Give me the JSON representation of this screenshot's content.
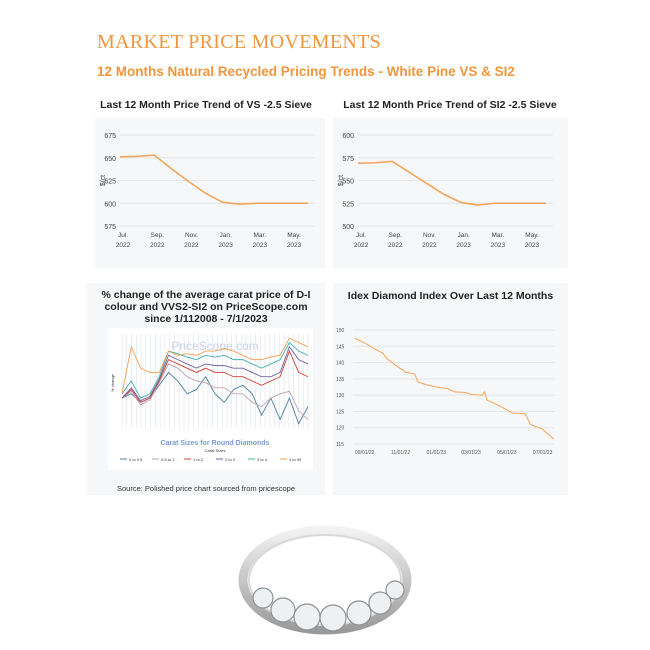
{
  "header": {
    "title": "MARKET PRICE MOVEMENTS",
    "subtitle": "12 Months Natural Recycled Pricing Trends - White Pine VS & SI2"
  },
  "colors": {
    "accent": "#f0963c",
    "line": "#f4a55a"
  },
  "chart_data": [
    {
      "type": "line",
      "title": "Last 12 Month Price Trend of VS -2.5 Sieve",
      "ylabel": "$/ct",
      "ylim": [
        575,
        675
      ],
      "yticks": [
        575,
        600,
        625,
        650,
        675
      ],
      "xticks": [
        [
          "Jul.",
          "2022"
        ],
        [
          "Sep.",
          "2022"
        ],
        [
          "Nov.",
          "2022"
        ],
        [
          "Jan.",
          "2023"
        ],
        [
          "Mar.",
          "2023"
        ],
        [
          "May.",
          "2023"
        ]
      ],
      "x": [
        "2022-07",
        "2022-08",
        "2022-09",
        "2022-10",
        "2022-11",
        "2022-12",
        "2023-01",
        "2023-02",
        "2023-03",
        "2023-04",
        "2023-05",
        "2023-06"
      ],
      "values": [
        651,
        651.5,
        653,
        638,
        624,
        611,
        601,
        599,
        600,
        600,
        600,
        600
      ],
      "grid": true
    },
    {
      "type": "line",
      "title": "Last 12 Month Price Trend of SI2 -2.5 Sieve",
      "ylabel": "$/ct",
      "ylim": [
        500,
        600
      ],
      "yticks": [
        500,
        525,
        550,
        575,
        600
      ],
      "xticks": [
        [
          "Jul.",
          "2022"
        ],
        [
          "Sep.",
          "2022"
        ],
        [
          "Nov.",
          "2022"
        ],
        [
          "Jan.",
          "2023"
        ],
        [
          "Mar.",
          "2023"
        ],
        [
          "May.",
          "2023"
        ]
      ],
      "x": [
        "2022-07",
        "2022-08",
        "2022-09",
        "2022-10",
        "2022-11",
        "2022-12",
        "2023-01",
        "2023-02",
        "2023-03",
        "2023-04",
        "2023-05",
        "2023-06"
      ],
      "values": [
        569,
        569.5,
        571,
        559,
        547,
        535,
        526,
        523,
        525,
        525,
        525,
        525
      ],
      "grid": true
    },
    {
      "type": "line",
      "title": "% change of the average carat price of D-I colour and VVS2-SI2 on PriceScope.com since 1/112008 - 7/1/2023",
      "watermark": "PriceScope.com",
      "ylabel": "% change",
      "xlabel": "Carat Sizes for Round Diamonds",
      "legend_title": "Carat Sizes",
      "legend": "bottom",
      "series": [
        {
          "name": "0 to 0.5",
          "color": "#4a7fa0",
          "values": [
            0,
            5,
            -5,
            0,
            15,
            30,
            20,
            5,
            10,
            25,
            5,
            -5,
            10,
            15,
            5,
            -20,
            0,
            -25,
            0,
            -30,
            -10
          ]
        },
        {
          "name": "0.5 to 1",
          "color": "#c0a0b0",
          "values": [
            0,
            8,
            -8,
            -2,
            18,
            40,
            35,
            25,
            20,
            18,
            12,
            12,
            5,
            5,
            -5,
            -10,
            0,
            5,
            8,
            -15,
            -25
          ]
        },
        {
          "name": "1 to 2",
          "color": "#d04030",
          "values": [
            0,
            10,
            -5,
            0,
            20,
            45,
            40,
            35,
            30,
            35,
            30,
            30,
            25,
            25,
            20,
            15,
            20,
            25,
            55,
            30,
            25
          ]
        },
        {
          "name": "2 to 3",
          "color": "#7060a0",
          "values": [
            0,
            12,
            -3,
            2,
            22,
            50,
            45,
            40,
            35,
            40,
            38,
            38,
            35,
            35,
            30,
            25,
            25,
            30,
            60,
            45,
            40
          ]
        },
        {
          "name": "3 to 4",
          "color": "#40b0b0",
          "values": [
            5,
            20,
            0,
            5,
            25,
            55,
            52,
            48,
            45,
            50,
            48,
            50,
            45,
            45,
            40,
            35,
            40,
            45,
            65,
            55,
            50
          ]
        },
        {
          "name": "4 to 99",
          "color": "#f0a050",
          "values": [
            5,
            60,
            35,
            30,
            30,
            55,
            50,
            52,
            50,
            55,
            55,
            58,
            55,
            50,
            45,
            45,
            48,
            50,
            70,
            65,
            60
          ]
        }
      ],
      "source": "Source: Polished price chart sourced from pricescope"
    },
    {
      "type": "line",
      "title": "Idex Diamond Index Over Last 12 Months",
      "ylim": [
        115,
        150
      ],
      "yticks": [
        115,
        120,
        125,
        130,
        135,
        140,
        145,
        150
      ],
      "xticks": [
        "09/01/22",
        "11/01/22",
        "01/01/23",
        "03/01/23",
        "05/01/23",
        "07/01/23"
      ],
      "x": [
        "2022-08-15",
        "2022-09-01",
        "2022-09-20",
        "2022-10-01",
        "2022-10-10",
        "2022-10-25",
        "2022-11-10",
        "2022-11-25",
        "2022-12-01",
        "2022-12-15",
        "2023-01-01",
        "2023-01-20",
        "2023-02-01",
        "2023-02-20",
        "2023-03-01",
        "2023-03-20",
        "2023-03-24",
        "2023-03-28",
        "2023-04-10",
        "2023-05-01",
        "2023-05-10",
        "2023-06-01",
        "2023-06-05",
        "2023-06-10",
        "2023-07-01",
        "2023-07-20"
      ],
      "values": [
        147.5,
        146,
        144,
        143,
        141,
        139,
        137,
        136.5,
        134,
        133.2,
        132.5,
        132,
        131,
        130.8,
        130.2,
        130,
        131,
        128.5,
        127.5,
        125.5,
        124.5,
        124.3,
        123,
        121,
        119.5,
        116.5
      ],
      "grid": true
    }
  ]
}
